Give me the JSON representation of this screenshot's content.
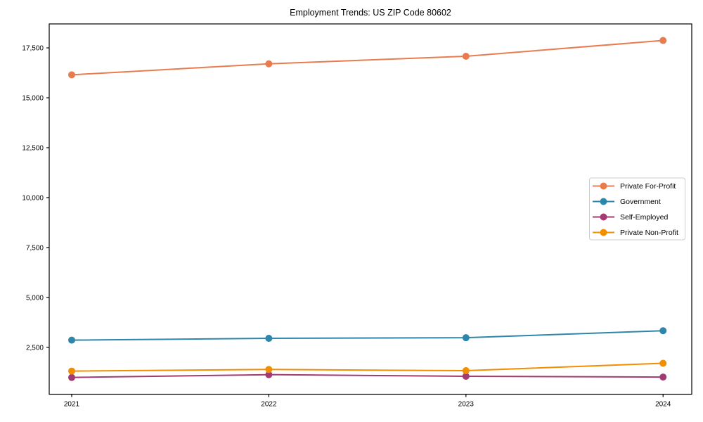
{
  "chart_data": {
    "type": "line",
    "title": "Employment Trends: US ZIP Code 80602",
    "xlabel": "",
    "ylabel": "",
    "categories": [
      "2021",
      "2022",
      "2023",
      "2024"
    ],
    "y_ticks": {
      "values": [
        2500,
        5000,
        7500,
        10000,
        12500,
        15000,
        17500
      ],
      "labels": [
        "2,500",
        "5,000",
        "7,500",
        "10,000",
        "12,500",
        "15,000",
        "17,500"
      ]
    },
    "ylim": [
      150,
      18700
    ],
    "grid": false,
    "legend_position": "center-right",
    "series": [
      {
        "name": "Private For-Profit",
        "color": "#E87C50",
        "values": [
          16150,
          16700,
          17080,
          17870
        ]
      },
      {
        "name": "Government",
        "color": "#2E86AB",
        "values": [
          2860,
          2950,
          2980,
          3330
        ]
      },
      {
        "name": "Self-Employed",
        "color": "#A23B72",
        "values": [
          990,
          1130,
          1050,
          1010
        ]
      },
      {
        "name": "Private Non-Profit",
        "color": "#F18F01",
        "values": [
          1310,
          1390,
          1330,
          1700
        ]
      }
    ]
  },
  "style_colors": {
    "axis": "#000000",
    "legend_border": "#cccccc",
    "background": "#ffffff"
  }
}
